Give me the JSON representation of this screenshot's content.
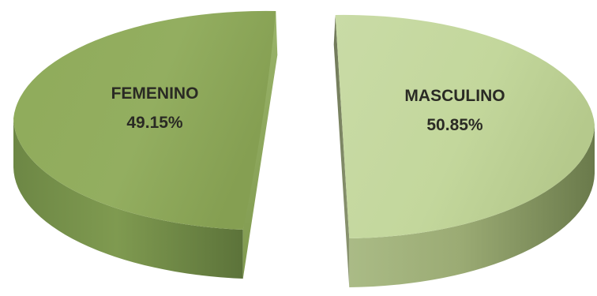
{
  "chart_data": {
    "type": "pie",
    "style": "3d-exploded",
    "slices": [
      {
        "label": "FEMENINO",
        "value": 49.15,
        "value_label": "49.15%",
        "color": "#93ad63"
      },
      {
        "label": "MASCULINO",
        "value": 50.85,
        "value_label": "50.85%",
        "color": "#c4d89e"
      }
    ],
    "legend": "none"
  }
}
